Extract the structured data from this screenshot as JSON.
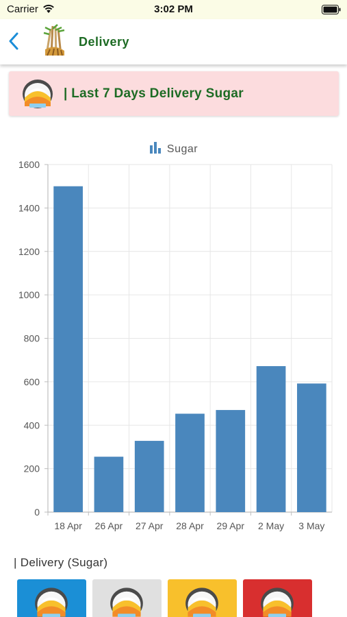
{
  "status_bar": {
    "carrier": "Carrier",
    "time": "3:02 PM"
  },
  "header": {
    "title": "Delivery",
    "back_icon": "chevron-left-icon",
    "logo_icon": "sugarcane-logo-icon"
  },
  "banner": {
    "title": "| Last 7 Days Delivery Sugar",
    "icon": "sugar-icon",
    "color": "#fcdcde"
  },
  "chart_data": {
    "type": "bar",
    "categories": [
      "18 Apr",
      "26 Apr",
      "27 Apr",
      "28 Apr",
      "29 Apr",
      "2 May",
      "3 May"
    ],
    "series": [
      {
        "name": "Sugar",
        "values": [
          1500,
          255,
          328,
          453,
          470,
          672,
          592
        ]
      }
    ],
    "yticks": [
      0,
      200,
      400,
      600,
      800,
      1000,
      1200,
      1400,
      1600
    ],
    "ylim": [
      0,
      1600
    ],
    "grid": true,
    "legend": "top-center",
    "bar_color": "#4a87bd",
    "title": "",
    "xlabel": "",
    "ylabel": ""
  },
  "section": {
    "title": "| Delivery (Sugar)"
  },
  "cards": [
    {
      "color": "#1b8fd6",
      "icon": "sugar-icon"
    },
    {
      "color": "#e0e0e0",
      "icon": "sugar-icon"
    },
    {
      "color": "#f8c02c",
      "icon": "sugar-icon"
    },
    {
      "color": "#d82f2f",
      "icon": "sugar-icon"
    }
  ]
}
